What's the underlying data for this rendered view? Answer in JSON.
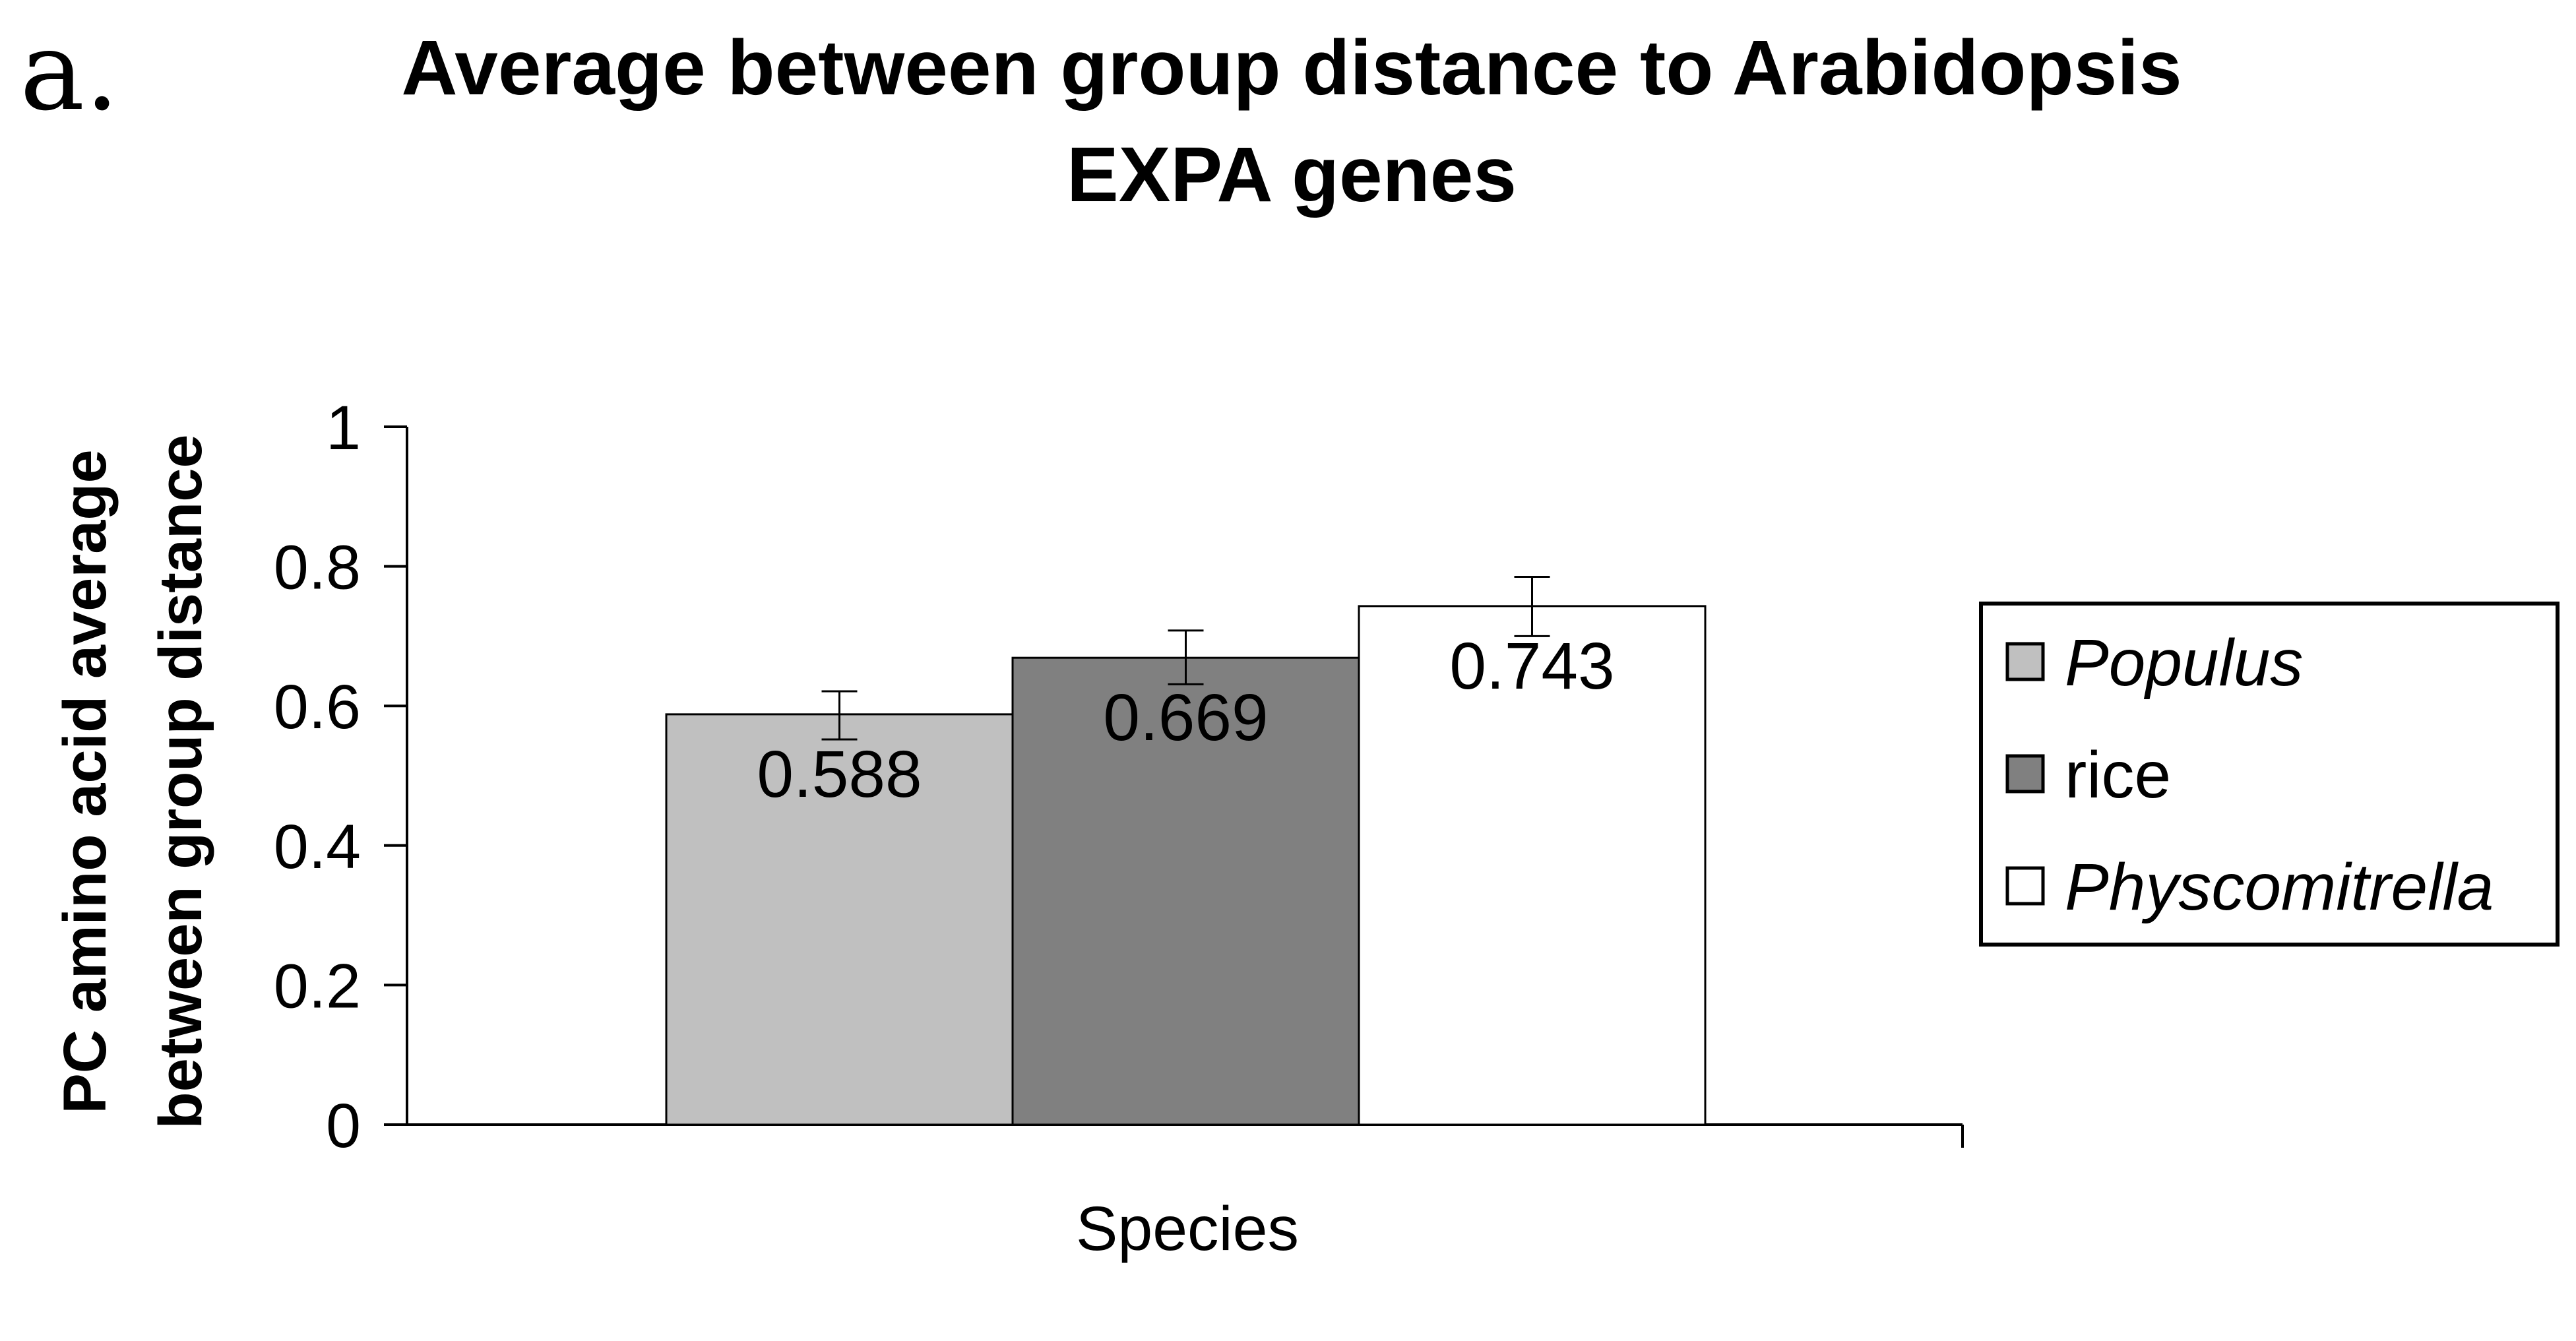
{
  "panel_label": "a.",
  "chart_data": {
    "type": "bar",
    "title_lines": [
      "Average between group distance to Arabidopsis",
      "EXPA genes"
    ],
    "ylabel_lines": [
      "PC amino acid average",
      "between group distance"
    ],
    "xlabel": "Species",
    "ylim": [
      0,
      1
    ],
    "yticks": [
      "0",
      "0.2",
      "0.4",
      "0.6",
      "0.8",
      "1"
    ],
    "grid": false,
    "legend_position": "right",
    "series": [
      {
        "name": "Populus",
        "italic": true,
        "value": 0.588,
        "label": "0.588",
        "error": [
          0.552,
          0.621
        ],
        "color": "#c0c0c0"
      },
      {
        "name": "rice",
        "italic": false,
        "value": 0.669,
        "label": "0.669",
        "error": [
          0.631,
          0.708
        ],
        "color": "#808080"
      },
      {
        "name": "Physcomitrella",
        "italic": true,
        "value": 0.743,
        "label": "0.743",
        "error": [
          0.7,
          0.785
        ],
        "color": "#ffffff"
      }
    ]
  }
}
